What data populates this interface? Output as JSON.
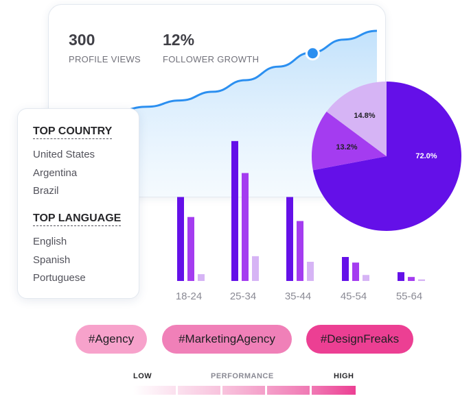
{
  "stats": {
    "profile_views_value": "300",
    "profile_views_label": "PROFILE VIEWS",
    "follower_growth_value": "12%",
    "follower_growth_label": "FOLLOWER GROWTH"
  },
  "audience": {
    "top_country_heading": "TOP COUNTRY",
    "countries": [
      "United States",
      "Argentina",
      "Brazil"
    ],
    "top_language_heading": "TOP LANGUAGE",
    "languages": [
      "English",
      "Spanish",
      "Portuguese"
    ]
  },
  "hashtags": [
    "#Agency",
    "#MarketingAgency",
    "#DesignFreaks"
  ],
  "performance": {
    "low_label": "LOW",
    "title": "PERFORMANCE",
    "high_label": "HIGH"
  },
  "colors": {
    "primary": "#6410e8",
    "secondary": "#a43cf0",
    "tertiary": "#d6b4f5",
    "line_blue": "#2b8ff0",
    "tag_light": "#f7a2cb",
    "tag_mid": "#f080b8",
    "tag_dark": "#ec3f93",
    "scale_high": "#ec3f93"
  },
  "chart_data": [
    {
      "type": "bar",
      "categories": [
        "18-24",
        "25-34",
        "35-44",
        "45-54",
        "55-64"
      ],
      "series": [
        {
          "values": [
            21,
            35,
            21,
            6,
            2.2
          ]
        },
        {
          "values": [
            16,
            27,
            15,
            4.6,
            1.0
          ]
        },
        {
          "values": [
            1.7,
            6.2,
            4.8,
            1.5,
            0.4
          ]
        }
      ],
      "colors": [
        "#6410e8",
        "#a43cf0",
        "#d6b4f5"
      ],
      "ylim": [
        0,
        36
      ]
    },
    {
      "type": "pie",
      "values": [
        72.0,
        13.2,
        14.8
      ],
      "labels": [
        "72.0%",
        "13.2%",
        "14.8%"
      ],
      "colors": [
        "#6410e8",
        "#a43cf0",
        "#d6b4f5"
      ]
    },
    {
      "type": "area",
      "x": [
        0,
        1,
        2,
        3,
        4,
        5,
        6,
        7,
        8,
        9,
        10
      ],
      "values": [
        0,
        0.6,
        1.3,
        2.3,
        3.6,
        5.4,
        7.8,
        10.6,
        13.5,
        16.2,
        18.0
      ],
      "highlight_index": 8
    }
  ]
}
